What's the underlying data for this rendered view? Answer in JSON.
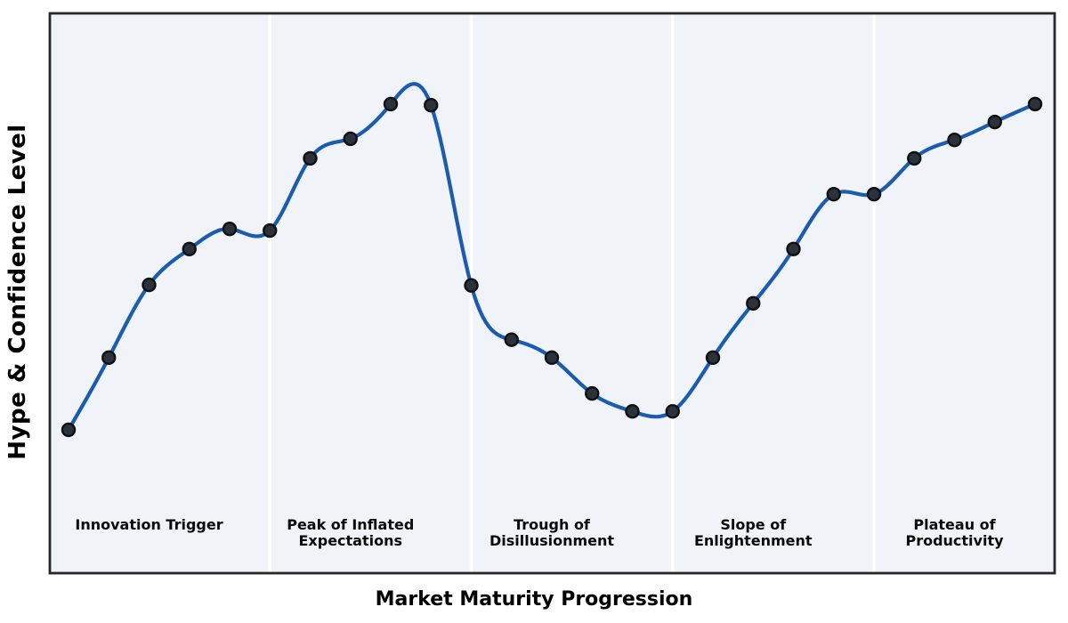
{
  "chart_data": {
    "type": "line",
    "title": "",
    "xlabel": "Market Maturity Progression",
    "ylabel": "Hype & Confidence Level",
    "x": [
      0,
      1,
      2,
      3,
      4,
      5,
      6,
      7,
      8,
      9,
      10,
      11,
      12,
      13,
      14,
      15,
      16,
      17,
      18,
      19,
      20,
      21,
      22,
      23,
      24
    ],
    "values": [
      25.6,
      38.5,
      51.5,
      57.9,
      61.5,
      61.2,
      74.1,
      77.6,
      83.8,
      83.6,
      51.4,
      41.7,
      38.5,
      32.1,
      28.9,
      28.9,
      38.5,
      48.2,
      57.9,
      67.7,
      67.7,
      74.1,
      77.4,
      80.6,
      83.8
    ],
    "series": [
      {
        "name": "Hype & Confidence Level",
        "values": [
          25.6,
          38.5,
          51.5,
          57.9,
          61.5,
          61.2,
          74.1,
          77.6,
          83.8,
          83.6,
          51.4,
          41.7,
          38.5,
          32.1,
          28.9,
          28.9,
          38.5,
          48.2,
          57.9,
          67.7,
          67.7,
          74.1,
          77.4,
          80.6,
          83.8
        ]
      }
    ],
    "xlim": [
      -0.5,
      24.55
    ],
    "ylim": [
      0,
      100
    ],
    "grid": false,
    "legend": null,
    "axis_ticks": "none",
    "curve_style": "smooth-cubic-spline-with-markers",
    "phase_separators_x": [
      5,
      10,
      15,
      20
    ],
    "phases": [
      {
        "label": "Innovation Trigger",
        "label_x": 2
      },
      {
        "label": "Peak of Inflated\nExpectations",
        "label_x": 7
      },
      {
        "label": "Trough of\nDisillusionment",
        "label_x": 12
      },
      {
        "label": "Slope of\nEnlightenment",
        "label_x": 17
      },
      {
        "label": "Plateau of\nProductivity",
        "label_x": 22
      }
    ],
    "colors": {
      "line": "#1b5caf",
      "marker_fill": "#2b323a",
      "marker_edge": "#0d1014",
      "plot_background": "#f0f4f8",
      "separator": "#ffffff",
      "border": "#24282d",
      "text": "#000000",
      "page_background": "#ffffff"
    }
  }
}
